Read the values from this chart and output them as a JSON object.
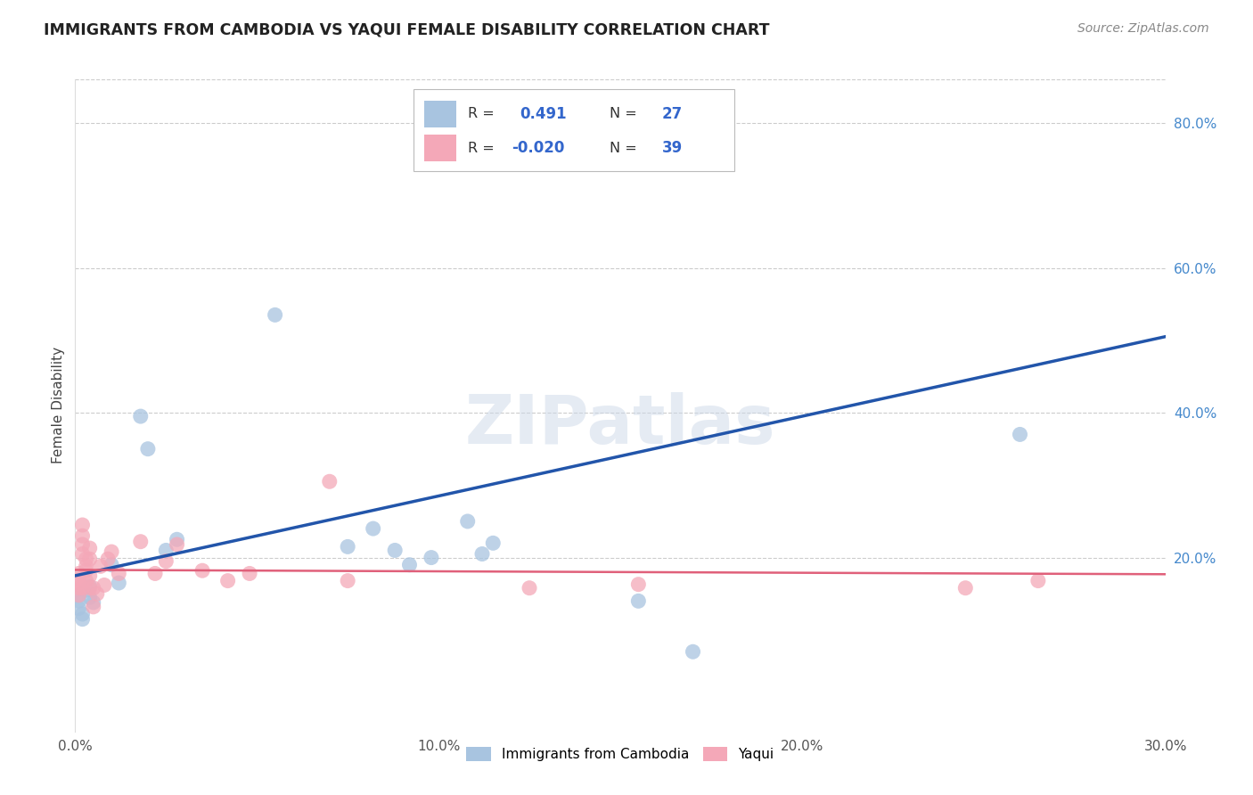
{
  "title": "IMMIGRANTS FROM CAMBODIA VS YAQUI FEMALE DISABILITY CORRELATION CHART",
  "source": "Source: ZipAtlas.com",
  "ylabel": "Female Disability",
  "r_cambodia": "0.491",
  "n_cambodia": "27",
  "r_yaqui": "-0.020",
  "n_yaqui": "39",
  "xmin": 0.0,
  "xmax": 0.3,
  "ymin": -0.04,
  "ymax": 0.86,
  "color_cambodia": "#a8c4e0",
  "color_yaqui": "#f4a8b8",
  "line_color_cambodia": "#2255aa",
  "line_color_yaqui": "#e0607a",
  "watermark": "ZIPatlas",
  "line_cam_x0": 0.0,
  "line_cam_y0": 0.175,
  "line_cam_x1": 0.3,
  "line_cam_y1": 0.505,
  "line_yaq_x0": 0.0,
  "line_yaq_y0": 0.183,
  "line_yaq_x1": 0.3,
  "line_yaq_y1": 0.177,
  "cambodia_points": [
    [
      0.001,
      0.14
    ],
    [
      0.001,
      0.148
    ],
    [
      0.001,
      0.13
    ],
    [
      0.002,
      0.122
    ],
    [
      0.002,
      0.115
    ],
    [
      0.003,
      0.155
    ],
    [
      0.004,
      0.145
    ],
    [
      0.004,
      0.16
    ],
    [
      0.005,
      0.138
    ],
    [
      0.01,
      0.19
    ],
    [
      0.012,
      0.165
    ],
    [
      0.018,
      0.395
    ],
    [
      0.02,
      0.35
    ],
    [
      0.025,
      0.21
    ],
    [
      0.028,
      0.225
    ],
    [
      0.055,
      0.535
    ],
    [
      0.075,
      0.215
    ],
    [
      0.082,
      0.24
    ],
    [
      0.088,
      0.21
    ],
    [
      0.092,
      0.19
    ],
    [
      0.098,
      0.2
    ],
    [
      0.108,
      0.25
    ],
    [
      0.112,
      0.205
    ],
    [
      0.115,
      0.22
    ],
    [
      0.155,
      0.14
    ],
    [
      0.17,
      0.07
    ],
    [
      0.26,
      0.37
    ]
  ],
  "yaqui_points": [
    [
      0.001,
      0.148
    ],
    [
      0.001,
      0.165
    ],
    [
      0.001,
      0.178
    ],
    [
      0.001,
      0.158
    ],
    [
      0.001,
      0.17
    ],
    [
      0.002,
      0.218
    ],
    [
      0.002,
      0.23
    ],
    [
      0.002,
      0.245
    ],
    [
      0.002,
      0.205
    ],
    [
      0.002,
      0.158
    ],
    [
      0.003,
      0.198
    ],
    [
      0.003,
      0.188
    ],
    [
      0.003,
      0.182
    ],
    [
      0.003,
      0.168
    ],
    [
      0.004,
      0.213
    ],
    [
      0.004,
      0.198
    ],
    [
      0.004,
      0.175
    ],
    [
      0.004,
      0.158
    ],
    [
      0.005,
      0.132
    ],
    [
      0.005,
      0.158
    ],
    [
      0.006,
      0.15
    ],
    [
      0.007,
      0.188
    ],
    [
      0.008,
      0.162
    ],
    [
      0.009,
      0.198
    ],
    [
      0.01,
      0.208
    ],
    [
      0.012,
      0.178
    ],
    [
      0.018,
      0.222
    ],
    [
      0.022,
      0.178
    ],
    [
      0.025,
      0.195
    ],
    [
      0.028,
      0.218
    ],
    [
      0.035,
      0.182
    ],
    [
      0.042,
      0.168
    ],
    [
      0.048,
      0.178
    ],
    [
      0.07,
      0.305
    ],
    [
      0.075,
      0.168
    ],
    [
      0.125,
      0.158
    ],
    [
      0.155,
      0.163
    ],
    [
      0.245,
      0.158
    ],
    [
      0.265,
      0.168
    ]
  ]
}
